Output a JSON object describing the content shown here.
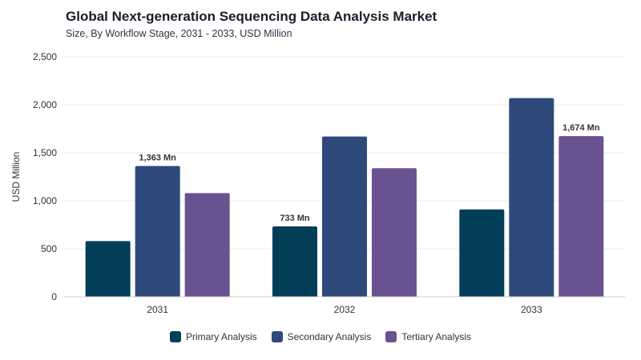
{
  "chart_data": {
    "type": "bar",
    "title": "Global Next-generation Sequencing Data Analysis Market",
    "subtitle": "Size, By Workflow Stage, 2031 - 2033, USD Million",
    "ylabel": "USD Million",
    "xlabel": "",
    "ylim": [
      0,
      2500
    ],
    "yticks": [
      0,
      500,
      1000,
      1500,
      2000,
      2500
    ],
    "ytick_labels": [
      "0",
      "500",
      "1,000",
      "1,500",
      "2,000",
      "2,500"
    ],
    "categories": [
      "2031",
      "2032",
      "2033"
    ],
    "series": [
      {
        "name": "Primary Analysis",
        "color": "#023e58",
        "values": [
          580,
          733,
          910
        ]
      },
      {
        "name": "Secondary Analysis",
        "color": "#2e4a7a",
        "values": [
          1363,
          1670,
          2070
        ]
      },
      {
        "name": "Tertiary Analysis",
        "color": "#6a5290",
        "values": [
          1080,
          1340,
          1674
        ]
      }
    ],
    "data_labels": [
      {
        "series": 1,
        "index": 0,
        "text": "1,363 Mn"
      },
      {
        "series": 0,
        "index": 1,
        "text": "733 Mn"
      },
      {
        "series": 2,
        "index": 2,
        "text": "1,674 Mn"
      }
    ],
    "grid": true,
    "legend_position": "bottom"
  }
}
